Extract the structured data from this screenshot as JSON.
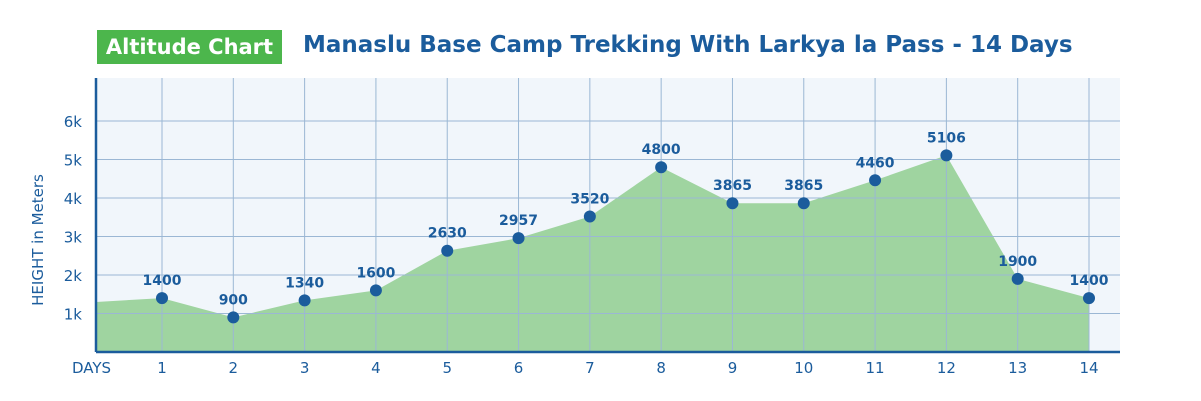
{
  "badge": "Altitude Chart",
  "chart_data": {
    "type": "area",
    "title": "Manaslu Base Camp Trekking With Larkya la Pass - 14 Days",
    "xlabel": "DAYS",
    "ylabel": "HEIGHT in Meters",
    "categories": [
      "1",
      "2",
      "3",
      "4",
      "5",
      "6",
      "7",
      "8",
      "9",
      "10",
      "11",
      "12",
      "13",
      "14"
    ],
    "values": [
      1400,
      900,
      1340,
      1600,
      2630,
      2957,
      3520,
      4800,
      3865,
      3865,
      4460,
      5106,
      1900,
      1400
    ],
    "y_ticks": [
      {
        "v": 1000,
        "label": "1k"
      },
      {
        "v": 2000,
        "label": "2k"
      },
      {
        "v": 3000,
        "label": "3k"
      },
      {
        "v": 4000,
        "label": "4k"
      },
      {
        "v": 5000,
        "label": "5k"
      },
      {
        "v": 6000,
        "label": "6k"
      }
    ],
    "ylim": [
      0,
      6800
    ],
    "grid": true,
    "colors": {
      "fill": "#9fd4a0",
      "point": "#1b5c9c",
      "grid": "#9bb7d4",
      "axis": "#1b5c9c",
      "background": "#f1f6fb",
      "badge": "#4cb64c"
    }
  }
}
